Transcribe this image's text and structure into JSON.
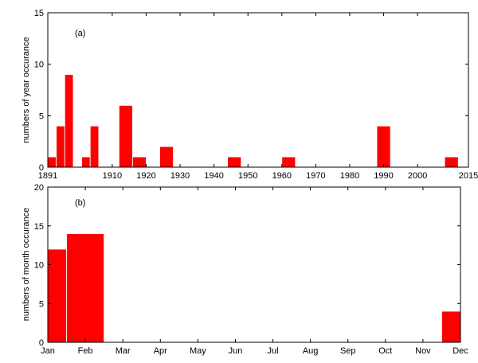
{
  "chart_data": [
    {
      "type": "bar",
      "panel_label": "(a)",
      "ylabel": "numbers of year occurance",
      "xlabel": "",
      "xlim": [
        1891,
        2015
      ],
      "ylim": [
        0,
        15
      ],
      "x_ticks": [
        1891,
        1910,
        1920,
        1930,
        1940,
        1950,
        1960,
        1970,
        1980,
        1990,
        2000,
        2015
      ],
      "y_ticks": [
        0,
        5,
        10,
        15
      ],
      "bars": [
        {
          "x0": 1891,
          "x1": 1893.5,
          "value": 1
        },
        {
          "x0": 1893.5,
          "x1": 1896,
          "value": 4
        },
        {
          "x0": 1896,
          "x1": 1898.5,
          "value": 9
        },
        {
          "x0": 1901,
          "x1": 1903.5,
          "value": 1
        },
        {
          "x0": 1903.5,
          "x1": 1906,
          "value": 4
        },
        {
          "x0": 1912,
          "x1": 1916,
          "value": 6
        },
        {
          "x0": 1916,
          "x1": 1920,
          "value": 1
        },
        {
          "x0": 1924,
          "x1": 1928,
          "value": 2
        },
        {
          "x0": 1944,
          "x1": 1948,
          "value": 1
        },
        {
          "x0": 1960,
          "x1": 1964,
          "value": 1
        },
        {
          "x0": 1988,
          "x1": 1992,
          "value": 4
        },
        {
          "x0": 2008,
          "x1": 2012,
          "value": 1
        }
      ],
      "bar_color": "#ff0000",
      "grid": false
    },
    {
      "type": "bar",
      "panel_label": "(b)",
      "ylabel": "numbers of month occurance",
      "xlabel": "",
      "xlim": [
        1,
        12
      ],
      "ylim": [
        0,
        20
      ],
      "x_ticks": [
        1,
        2,
        3,
        4,
        5,
        6,
        7,
        8,
        9,
        10,
        11,
        12
      ],
      "x_tick_labels": [
        "Jan",
        "Feb",
        "Mar",
        "Apr",
        "May",
        "Jun",
        "Jul",
        "Aug",
        "Sep",
        "Oct",
        "Nov",
        "Dec"
      ],
      "y_ticks": [
        0,
        5,
        10,
        15,
        20
      ],
      "bars": [
        {
          "x0": 1,
          "x1": 1.5,
          "value": 12
        },
        {
          "x0": 1.5,
          "x1": 2.5,
          "value": 14
        },
        {
          "x0": 11.5,
          "x1": 12,
          "value": 4
        }
      ],
      "bar_color": "#ff0000",
      "grid": false
    }
  ]
}
